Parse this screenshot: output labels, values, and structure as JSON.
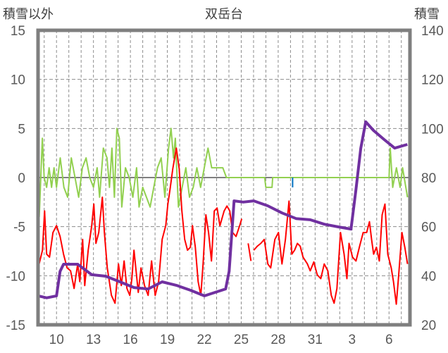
{
  "chart_data": {
    "type": "line",
    "title": "双岳台",
    "ylabel_left": "積雪以外",
    "ylabel_right": "積雪",
    "xlim_days": [
      8.5,
      38.7
    ],
    "ylim_left": [
      -15,
      15
    ],
    "ylim_right": [
      20,
      140
    ],
    "yticks_left": [
      15,
      10,
      5,
      0,
      -5,
      -10,
      -15
    ],
    "yticks_right": [
      140,
      120,
      100,
      80,
      60,
      40,
      20
    ],
    "xticks": [
      {
        "day": 10,
        "label": "10"
      },
      {
        "day": 13,
        "label": "13"
      },
      {
        "day": 16,
        "label": "16"
      },
      {
        "day": 19,
        "label": "19"
      },
      {
        "day": 22,
        "label": "22"
      },
      {
        "day": 25,
        "label": "25"
      },
      {
        "day": 28,
        "label": "28"
      },
      {
        "day": 31,
        "label": "31"
      },
      {
        "day": 34,
        "label": "3"
      },
      {
        "day": 37,
        "label": "6"
      }
    ],
    "grid": true,
    "series": [
      {
        "name": "green",
        "axis": "left",
        "color": "#92d050",
        "points": [
          [
            8.51,
            5
          ],
          [
            8.6,
            -4
          ],
          [
            8.85,
            4
          ],
          [
            9.0,
            0
          ],
          [
            9.2,
            -1
          ],
          [
            9.4,
            1
          ],
          [
            9.6,
            -1
          ],
          [
            9.8,
            1
          ],
          [
            10.0,
            -1
          ],
          [
            10.3,
            2
          ],
          [
            10.6,
            -1
          ],
          [
            10.9,
            -2
          ],
          [
            11.2,
            2
          ],
          [
            11.5,
            0
          ],
          [
            11.8,
            -2
          ],
          [
            12.1,
            1
          ],
          [
            12.4,
            2
          ],
          [
            12.7,
            0
          ],
          [
            13.0,
            -1
          ],
          [
            13.3,
            1
          ],
          [
            13.5,
            -2
          ],
          [
            13.8,
            3
          ],
          [
            14.1,
            2
          ],
          [
            14.3,
            -1
          ],
          [
            14.5,
            3
          ],
          [
            14.7,
            -2
          ],
          [
            14.9,
            5
          ],
          [
            15.1,
            4
          ],
          [
            15.3,
            -3
          ],
          [
            15.6,
            1
          ],
          [
            15.9,
            0
          ],
          [
            16.2,
            -2
          ],
          [
            16.5,
            1
          ],
          [
            16.7,
            -3
          ],
          [
            17.0,
            -1
          ],
          [
            17.3,
            -2
          ],
          [
            17.6,
            -3
          ],
          [
            17.9,
            -1
          ],
          [
            18.2,
            1
          ],
          [
            18.5,
            2
          ],
          [
            18.8,
            -2
          ],
          [
            19.1,
            3
          ],
          [
            19.3,
            5
          ],
          [
            19.5,
            2
          ],
          [
            19.65,
            4
          ],
          [
            19.9,
            -3
          ],
          [
            20.2,
            -1
          ],
          [
            20.5,
            1
          ],
          [
            20.8,
            -2
          ],
          [
            21.1,
            -1
          ],
          [
            21.4,
            1
          ],
          [
            21.7,
            -1
          ],
          [
            22.0,
            1
          ],
          [
            22.3,
            3
          ],
          [
            22.6,
            1
          ],
          [
            22.9,
            1
          ],
          [
            23.2,
            1
          ],
          [
            23.5,
            1
          ],
          [
            23.8,
            0
          ],
          [
            26.9,
            0
          ],
          [
            27.0,
            -1
          ],
          [
            27.5,
            -1
          ],
          [
            27.55,
            0
          ],
          [
            37.0,
            0
          ],
          [
            37.1,
            3
          ],
          [
            37.3,
            -1
          ],
          [
            37.6,
            1
          ],
          [
            37.9,
            -1
          ],
          [
            38.1,
            1
          ],
          [
            38.5,
            -2
          ]
        ]
      },
      {
        "name": "red",
        "axis": "left",
        "color": "#ff0000",
        "points": [
          [
            8.51,
            -9.2
          ],
          [
            8.86,
            -7.4
          ],
          [
            9.03,
            -3.4
          ],
          [
            9.2,
            -7.8
          ],
          [
            9.43,
            -8.1
          ],
          [
            9.71,
            -5.6
          ],
          [
            10.0,
            -4.9
          ],
          [
            10.29,
            -6
          ],
          [
            10.57,
            -7.8
          ],
          [
            10.86,
            -9.2
          ],
          [
            11.14,
            -9.5
          ],
          [
            11.43,
            -11.3
          ],
          [
            11.72,
            -8.8
          ],
          [
            11.89,
            -10.6
          ],
          [
            12.12,
            -6.3
          ],
          [
            12.29,
            -11
          ],
          [
            12.57,
            -7.4
          ],
          [
            12.86,
            -4.9
          ],
          [
            13.03,
            -2.7
          ],
          [
            13.2,
            -6.7
          ],
          [
            13.43,
            -5.6
          ],
          [
            13.72,
            -2.0
          ],
          [
            13.89,
            -5.6
          ],
          [
            14.12,
            -9.2
          ],
          [
            14.46,
            -12
          ],
          [
            14.75,
            -12.8
          ],
          [
            15.03,
            -8.8
          ],
          [
            15.26,
            -11
          ],
          [
            15.49,
            -8.5
          ],
          [
            15.72,
            -11.3
          ],
          [
            15.95,
            -12
          ],
          [
            16.12,
            -10.3
          ],
          [
            16.29,
            -7.4
          ],
          [
            16.64,
            -11.7
          ],
          [
            16.86,
            -9.2
          ],
          [
            17.15,
            -11
          ],
          [
            17.44,
            -12
          ],
          [
            17.72,
            -8.5
          ],
          [
            18.01,
            -12
          ],
          [
            18.29,
            -10.6
          ],
          [
            18.58,
            -6.3
          ],
          [
            18.87,
            -4.9
          ],
          [
            19.04,
            -2.7
          ],
          [
            19.21,
            -1.3
          ],
          [
            19.44,
            0.9
          ],
          [
            19.73,
            3
          ],
          [
            19.96,
            0.9
          ],
          [
            20.18,
            -3.4
          ],
          [
            20.41,
            -6.3
          ],
          [
            20.64,
            -7.4
          ],
          [
            20.87,
            -7.1
          ],
          [
            21.04,
            -4.9
          ],
          [
            21.27,
            -7.1
          ],
          [
            21.5,
            -10.6
          ],
          [
            21.72,
            -12
          ],
          [
            21.9,
            -8.8
          ],
          [
            22.13,
            -3.8
          ],
          [
            22.35,
            -5.6
          ],
          [
            22.58,
            -8.5
          ],
          [
            22.81,
            -3.4
          ],
          [
            23.04,
            -3.1
          ],
          [
            23.27,
            -4.9
          ],
          [
            23.61,
            -3.4
          ],
          [
            23.84,
            -2.9
          ],
          [
            24.07,
            -3.4
          ],
          [
            24.3,
            -5.6
          ],
          [
            24.58,
            -6
          ],
          [
            24.87,
            -4.9
          ],
          [
            25.04,
            -4.2
          ],
          [
            25.05,
            null
          ],
          [
            25.56,
            -6.7
          ],
          [
            25.79,
            -8.5
          ],
          [
            25.8,
            null
          ],
          [
            26.02,
            -7.4
          ],
          [
            26.3,
            -7
          ],
          [
            26.59,
            -6.7
          ],
          [
            26.87,
            -6.3
          ],
          [
            27.16,
            -8.8
          ],
          [
            27.39,
            -9.2
          ],
          [
            27.73,
            -6.3
          ],
          [
            28.02,
            -5.6
          ],
          [
            28.31,
            -8.8
          ],
          [
            28.59,
            -6.3
          ],
          [
            28.88,
            -2.4
          ],
          [
            29.11,
            -7.8
          ],
          [
            29.33,
            -7.4
          ],
          [
            29.56,
            -6.7
          ],
          [
            29.79,
            -7
          ],
          [
            30.02,
            -8.1
          ],
          [
            30.37,
            -8.8
          ],
          [
            30.6,
            -9.5
          ],
          [
            30.89,
            -8.6
          ],
          [
            31.17,
            -9.9
          ],
          [
            31.46,
            -10.3
          ],
          [
            31.74,
            -8.8
          ],
          [
            32.03,
            -9.5
          ],
          [
            32.31,
            -12
          ],
          [
            32.54,
            -12.8
          ],
          [
            32.77,
            -11.3
          ],
          [
            33.06,
            -5.6
          ],
          [
            33.35,
            -7.8
          ],
          [
            33.58,
            -10.3
          ],
          [
            33.75,
            -6.7
          ],
          [
            34.03,
            -8.1
          ],
          [
            34.32,
            -8.5
          ],
          [
            34.61,
            -7
          ],
          [
            34.9,
            -5.6
          ],
          [
            35.18,
            -5.6
          ],
          [
            35.41,
            -4.5
          ],
          [
            35.58,
            -6.3
          ],
          [
            35.75,
            -7.8
          ],
          [
            35.98,
            -7.1
          ],
          [
            36.21,
            -8.5
          ],
          [
            36.44,
            -3.8
          ],
          [
            36.67,
            -2.7
          ],
          [
            36.9,
            -7.8
          ],
          [
            37.18,
            -9.2
          ],
          [
            37.36,
            -10.6
          ],
          [
            37.59,
            -12.9
          ],
          [
            37.76,
            -10.3
          ],
          [
            38.05,
            -5.6
          ],
          [
            38.28,
            -7.1
          ],
          [
            38.5,
            -8.8
          ]
        ]
      },
      {
        "name": "blue",
        "axis": "left",
        "color": "#0070c0",
        "points": [
          [
            29.17,
            0
          ],
          [
            29.17,
            -1
          ]
        ]
      },
      {
        "name": "purple",
        "axis": "right",
        "color": "#7030a0",
        "points": [
          [
            8.51,
            31.8
          ],
          [
            9.2,
            31
          ],
          [
            10.0,
            31.8
          ],
          [
            10.29,
            41.8
          ],
          [
            10.57,
            44.7
          ],
          [
            11.72,
            44.7
          ],
          [
            12.86,
            40.4
          ],
          [
            14.0,
            39.8
          ],
          [
            15.15,
            37.5
          ],
          [
            16.29,
            35.2
          ],
          [
            17.44,
            34.6
          ],
          [
            18.58,
            37.5
          ],
          [
            19.73,
            36.1
          ],
          [
            20.87,
            34.1
          ],
          [
            22.01,
            31.8
          ],
          [
            22.87,
            33.2
          ],
          [
            23.73,
            34.6
          ],
          [
            24.02,
            41.8
          ],
          [
            24.42,
            70.5
          ],
          [
            25.16,
            70
          ],
          [
            26.02,
            70.5
          ],
          [
            27.16,
            68.5
          ],
          [
            28.31,
            65.6
          ],
          [
            29.45,
            63.3
          ],
          [
            30.6,
            62.8
          ],
          [
            31.74,
            61
          ],
          [
            32.88,
            59.9
          ],
          [
            33.91,
            59
          ],
          [
            34.31,
            74.8
          ],
          [
            34.71,
            92
          ],
          [
            35.11,
            102.7
          ],
          [
            35.74,
            99.2
          ],
          [
            36.6,
            95.5
          ],
          [
            37.46,
            92
          ],
          [
            38.49,
            93.5
          ]
        ]
      }
    ]
  }
}
